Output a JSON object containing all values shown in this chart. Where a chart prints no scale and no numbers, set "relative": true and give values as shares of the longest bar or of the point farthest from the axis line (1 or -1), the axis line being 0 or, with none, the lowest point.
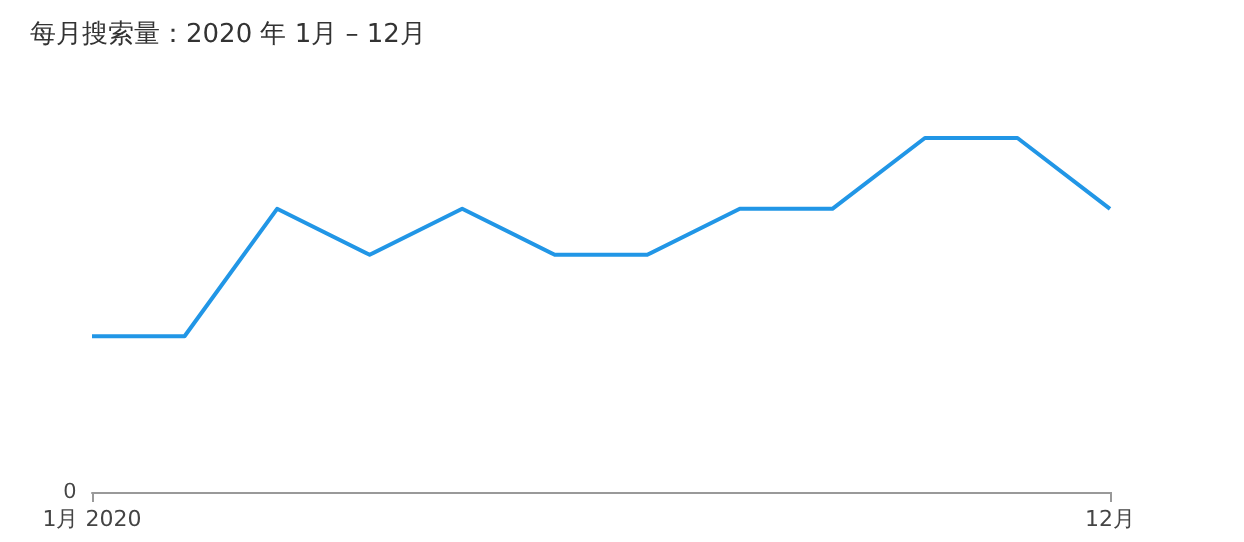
{
  "chart_data": {
    "type": "line",
    "title": "每月搜索量：2020 年 1月 – 12月",
    "categories": [
      "1月 2020",
      null,
      null,
      null,
      null,
      null,
      null,
      null,
      null,
      null,
      null,
      "12月"
    ],
    "series": [
      {
        "color": "#2196e6",
        "values": [
          0.44,
          0.44,
          0.8,
          0.67,
          0.8,
          0.67,
          0.67,
          0.8,
          0.8,
          1,
          1,
          0.8
        ]
      }
    ],
    "relative": true,
    "annotations": [
      "0"
    ],
    "marker": "none",
    "line_style": "solid"
  }
}
